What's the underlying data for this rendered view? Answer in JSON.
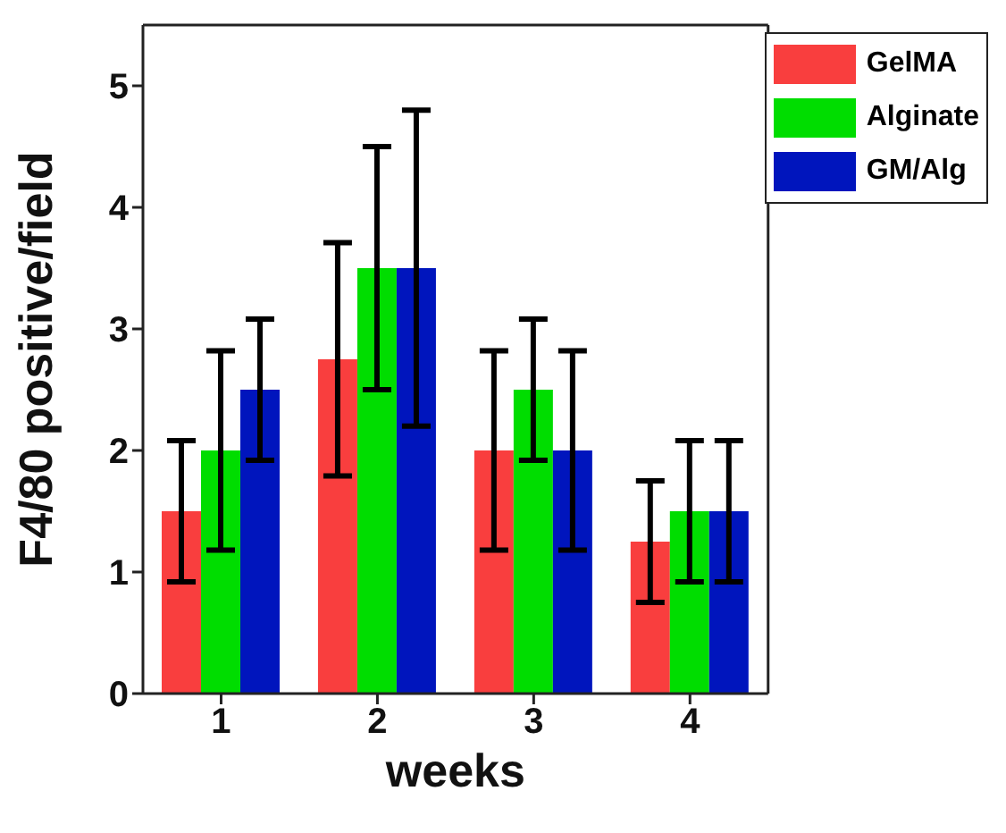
{
  "chart_data": {
    "type": "bar",
    "xlabel": "weeks",
    "ylabel": "F4/80 positive/field",
    "categories": [
      "1",
      "2",
      "3",
      "4"
    ],
    "series": [
      {
        "name": "GelMA",
        "color": "#f93e3e",
        "values": [
          1.5,
          2.75,
          2,
          1.25
        ],
        "errors": [
          0.58,
          0.96,
          0.82,
          0.5
        ]
      },
      {
        "name": "Alginate",
        "color": "#00dd00",
        "values": [
          2,
          3.5,
          2.5,
          1.5
        ],
        "errors": [
          0.82,
          1.0,
          0.58,
          0.58
        ]
      },
      {
        "name": "GM/Alg",
        "color": "#0015bd",
        "values": [
          2.5,
          3.5,
          2,
          1.5
        ],
        "errors": [
          0.58,
          1.3,
          0.82,
          0.58
        ]
      }
    ],
    "ylim": [
      0,
      5.5
    ],
    "yticks": [
      0,
      1,
      2,
      3,
      4,
      5
    ],
    "grid": false,
    "legend": "top right"
  }
}
